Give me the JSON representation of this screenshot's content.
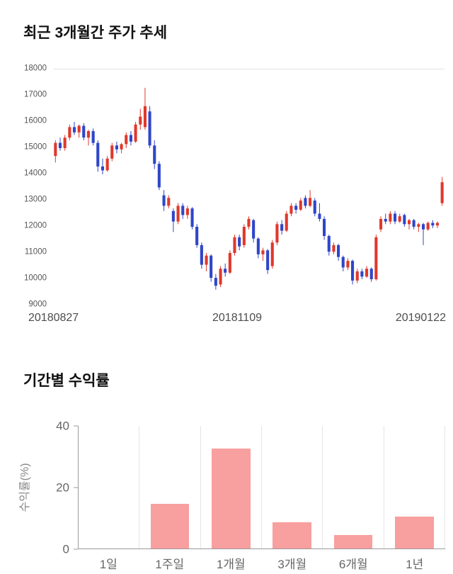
{
  "price_section": {
    "title": "최근 3개월간 주가 추세"
  },
  "returns_section": {
    "title": "기간별 수익률"
  },
  "chart_data": [
    {
      "type": "candlestick",
      "title": "최근 3개월간 주가 추세",
      "ylim": [
        9000,
        18000
      ],
      "yticks": [
        9000,
        10000,
        11000,
        12000,
        13000,
        14000,
        15000,
        16000,
        17000,
        18000
      ],
      "xticklabels": [
        "20180827",
        "20181109",
        "20190122"
      ],
      "up_color": "#e0382c",
      "down_color": "#2f46c8",
      "grid": false,
      "candles": [
        [
          14700,
          15300,
          14450,
          15200
        ],
        [
          15200,
          15400,
          14900,
          15000
        ],
        [
          15000,
          15500,
          14900,
          15400
        ],
        [
          15400,
          15900,
          15300,
          15800
        ],
        [
          15800,
          16000,
          15500,
          15600
        ],
        [
          15600,
          15900,
          15400,
          15850
        ],
        [
          15850,
          15950,
          15300,
          15400
        ],
        [
          15400,
          15700,
          15100,
          15650
        ],
        [
          15650,
          15750,
          15100,
          15200
        ],
        [
          15200,
          15300,
          14100,
          14300
        ],
        [
          14300,
          14600,
          14000,
          14150
        ],
        [
          14150,
          14700,
          14100,
          14600
        ],
        [
          14600,
          15200,
          14500,
          15100
        ],
        [
          15100,
          15250,
          14800,
          14950
        ],
        [
          14950,
          15200,
          14800,
          15150
        ],
        [
          15150,
          15600,
          15000,
          15500
        ],
        [
          15500,
          15650,
          15100,
          15250
        ],
        [
          15250,
          16000,
          15200,
          15900
        ],
        [
          15900,
          16500,
          15700,
          16200
        ],
        [
          15800,
          17300,
          15700,
          16600
        ],
        [
          16400,
          16600,
          15000,
          15100
        ],
        [
          15100,
          15300,
          14200,
          14400
        ],
        [
          14400,
          14500,
          13400,
          13500
        ],
        [
          13200,
          13400,
          12600,
          12800
        ],
        [
          12800,
          13200,
          12700,
          13100
        ],
        [
          12600,
          12700,
          11800,
          12200
        ],
        [
          12200,
          12900,
          12100,
          12800
        ],
        [
          12800,
          12900,
          12300,
          12450
        ],
        [
          12450,
          12800,
          12300,
          12700
        ],
        [
          12700,
          12750,
          11900,
          12000
        ],
        [
          12000,
          12100,
          11200,
          11300
        ],
        [
          11300,
          11400,
          10400,
          10550
        ],
        [
          10550,
          11000,
          10300,
          10900
        ],
        [
          10900,
          10950,
          9900,
          10050
        ],
        [
          10050,
          10200,
          9600,
          9750
        ],
        [
          9800,
          10500,
          9700,
          10400
        ],
        [
          10400,
          10600,
          10100,
          10250
        ],
        [
          10250,
          11100,
          10200,
          11000
        ],
        [
          11000,
          11700,
          10900,
          11600
        ],
        [
          11600,
          11700,
          11100,
          11250
        ],
        [
          11300,
          12100,
          11200,
          12000
        ],
        [
          12000,
          12400,
          11900,
          12300
        ],
        [
          12250,
          12300,
          11400,
          11550
        ],
        [
          11550,
          11600,
          10800,
          10950
        ],
        [
          10950,
          11200,
          10700,
          11100
        ],
        [
          11100,
          11150,
          10200,
          10350
        ],
        [
          10500,
          11500,
          10400,
          11400
        ],
        [
          11400,
          12200,
          11300,
          12100
        ],
        [
          12100,
          12250,
          11700,
          11850
        ],
        [
          11850,
          12600,
          11800,
          12500
        ],
        [
          12500,
          12900,
          12400,
          12800
        ],
        [
          12800,
          12900,
          12500,
          12650
        ],
        [
          12650,
          13100,
          12600,
          13000
        ],
        [
          13100,
          13200,
          12700,
          12800
        ],
        [
          12800,
          13400,
          12750,
          13100
        ],
        [
          13000,
          13100,
          12400,
          12500
        ],
        [
          12500,
          12900,
          12200,
          12300
        ],
        [
          12300,
          12400,
          11500,
          11650
        ],
        [
          11650,
          11700,
          10900,
          11050
        ],
        [
          11050,
          11400,
          10950,
          11300
        ],
        [
          11300,
          11350,
          10700,
          10850
        ],
        [
          10850,
          10900,
          10300,
          10450
        ],
        [
          10450,
          10800,
          10350,
          10700
        ],
        [
          10700,
          10750,
          9800,
          9950
        ],
        [
          9950,
          10400,
          9850,
          10300
        ],
        [
          10300,
          10400,
          10000,
          10100
        ],
        [
          10100,
          10500,
          10050,
          10400
        ],
        [
          10400,
          10450,
          9900,
          10000
        ],
        [
          10000,
          11700,
          9950,
          11600
        ],
        [
          11900,
          12400,
          11800,
          12300
        ],
        [
          12300,
          12500,
          12100,
          12200
        ],
        [
          12200,
          12600,
          12100,
          12500
        ],
        [
          12500,
          12600,
          12100,
          12200
        ],
        [
          12200,
          12500,
          12150,
          12400
        ],
        [
          12450,
          12500,
          12000,
          12100
        ],
        [
          12100,
          12300,
          11900,
          12250
        ],
        [
          12250,
          12300,
          11900,
          12000
        ],
        [
          12000,
          12150,
          11800,
          12100
        ],
        [
          12100,
          12150,
          11300,
          11900
        ],
        [
          11900,
          12200,
          11850,
          12150
        ],
        [
          12150,
          12250,
          11950,
          12050
        ],
        [
          12050,
          12200,
          11950,
          12150
        ],
        [
          12900,
          13900,
          12800,
          13700
        ]
      ]
    },
    {
      "type": "bar",
      "title": "기간별 수익률",
      "categories": [
        "1일",
        "1주일",
        "1개월",
        "3개월",
        "6개월",
        "1년"
      ],
      "values": [
        0,
        14.5,
        32.5,
        8.5,
        4.5,
        10.5
      ],
      "ylabel": "수익률(%)",
      "yticks": [
        0,
        20,
        40
      ],
      "ylim": [
        0,
        40
      ],
      "bar_color": "#f89f9f",
      "grid": false,
      "legend": "none"
    }
  ]
}
